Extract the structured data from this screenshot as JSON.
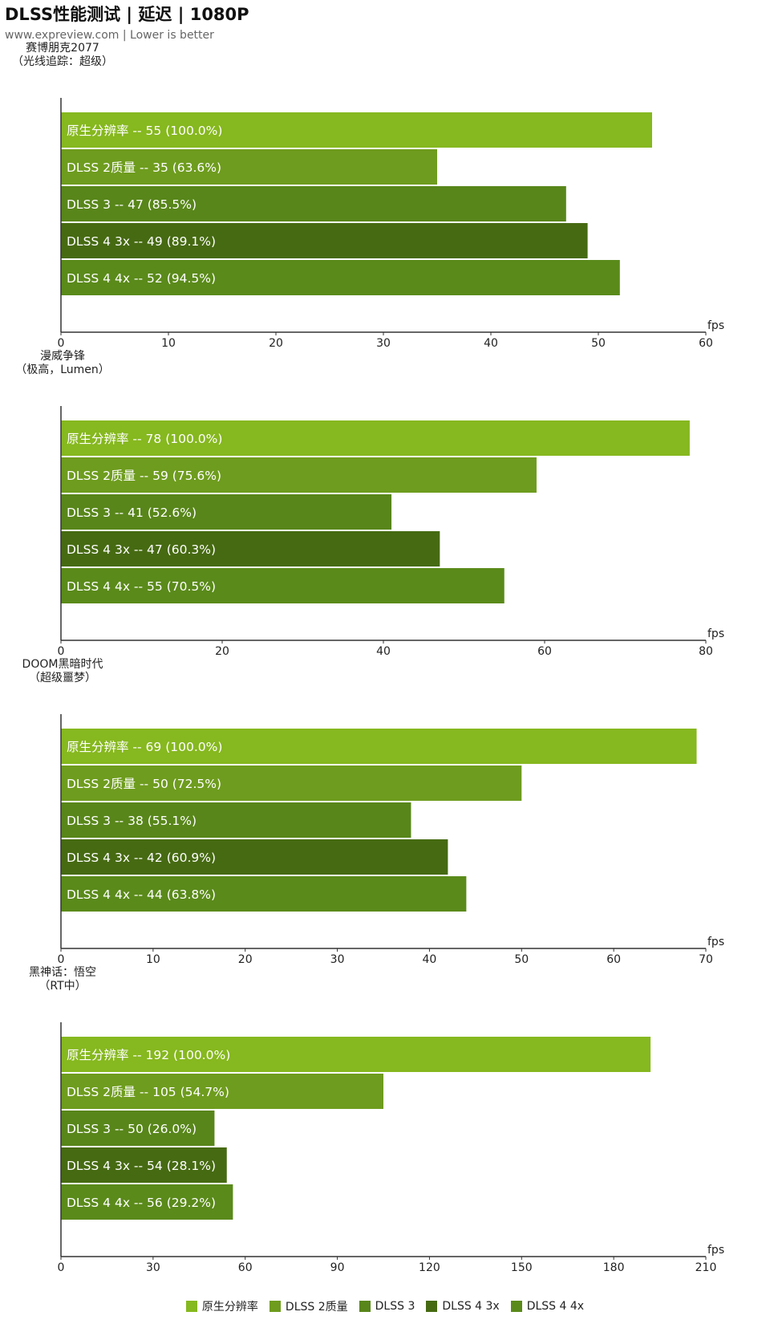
{
  "header": {
    "title": "DLSS性能测试 | 延迟 | 1080P",
    "subtitle": "www.expreview.com | Lower is better"
  },
  "series_names": [
    "原生分辨率",
    "DLSS 2质量",
    "DLSS 3",
    "DLSS 4 3x",
    "DLSS 4 4x"
  ],
  "series_colors": [
    "#86b81f",
    "#6e9c1e",
    "#58861a",
    "#466a12",
    "#5a8a1a"
  ],
  "chart_data": [
    {
      "type": "bar",
      "game": "赛博朋克2077",
      "settings": "（光线追踪：超级）",
      "xlabel": "fps",
      "xlim": [
        0,
        60
      ],
      "ticks": [
        0,
        10,
        20,
        30,
        40,
        50,
        60
      ],
      "bars": [
        {
          "series": "原生分辨率",
          "value": 55,
          "pct": "100.0%"
        },
        {
          "series": "DLSS 2质量",
          "value": 35,
          "pct": "63.6%"
        },
        {
          "series": "DLSS 3",
          "value": 47,
          "pct": "85.5%"
        },
        {
          "series": "DLSS 4 3x",
          "value": 49,
          "pct": "89.1%"
        },
        {
          "series": "DLSS 4 4x",
          "value": 52,
          "pct": "94.5%"
        }
      ]
    },
    {
      "type": "bar",
      "game": "漫威争锋",
      "settings": "（极高，Lumen）",
      "xlabel": "fps",
      "xlim": [
        0,
        80
      ],
      "ticks": [
        0,
        20,
        40,
        60,
        80
      ],
      "bars": [
        {
          "series": "原生分辨率",
          "value": 78,
          "pct": "100.0%"
        },
        {
          "series": "DLSS 2质量",
          "value": 59,
          "pct": "75.6%"
        },
        {
          "series": "DLSS 3",
          "value": 41,
          "pct": "52.6%"
        },
        {
          "series": "DLSS 4 3x",
          "value": 47,
          "pct": "60.3%"
        },
        {
          "series": "DLSS 4 4x",
          "value": 55,
          "pct": "70.5%"
        }
      ]
    },
    {
      "type": "bar",
      "game": "DOOM黑暗时代",
      "settings": "（超级噩梦）",
      "xlabel": "fps",
      "xlim": [
        0,
        70
      ],
      "ticks": [
        0,
        10,
        20,
        30,
        40,
        50,
        60,
        70
      ],
      "bars": [
        {
          "series": "原生分辨率",
          "value": 69,
          "pct": "100.0%"
        },
        {
          "series": "DLSS 2质量",
          "value": 50,
          "pct": "72.5%"
        },
        {
          "series": "DLSS 3",
          "value": 38,
          "pct": "55.1%"
        },
        {
          "series": "DLSS 4 3x",
          "value": 42,
          "pct": "60.9%"
        },
        {
          "series": "DLSS 4 4x",
          "value": 44,
          "pct": "63.8%"
        }
      ]
    },
    {
      "type": "bar",
      "game": "黑神话：悟空",
      "settings": "（RT中）",
      "xlabel": "fps",
      "xlim": [
        0,
        210
      ],
      "ticks": [
        0,
        30,
        60,
        90,
        120,
        150,
        180,
        210
      ],
      "bars": [
        {
          "series": "原生分辨率",
          "value": 192,
          "pct": "100.0%"
        },
        {
          "series": "DLSS 2质量",
          "value": 105,
          "pct": "54.7%"
        },
        {
          "series": "DLSS 3",
          "value": 50,
          "pct": "26.0%"
        },
        {
          "series": "DLSS 4 3x",
          "value": 54,
          "pct": "28.1%"
        },
        {
          "series": "DLSS 4 4x",
          "value": 56,
          "pct": "29.2%"
        }
      ]
    }
  ]
}
